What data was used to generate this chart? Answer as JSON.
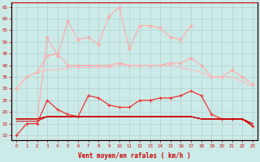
{
  "x": [
    0,
    1,
    2,
    3,
    4,
    5,
    6,
    7,
    8,
    9,
    10,
    11,
    12,
    13,
    14,
    15,
    16,
    17,
    18,
    19,
    20,
    21,
    22,
    23
  ],
  "y_rafales_spiky": [
    null,
    null,
    16,
    52,
    44,
    59,
    51,
    52,
    49,
    61,
    65,
    47,
    57,
    57,
    56,
    52,
    51,
    57,
    null,
    null,
    null,
    null,
    null,
    null
  ],
  "y_smooth_upper": [
    30,
    35,
    37,
    44,
    45,
    40,
    40,
    40,
    40,
    40,
    41,
    40,
    40,
    40,
    40,
    41,
    41,
    43,
    40,
    35,
    35,
    38,
    35,
    32
  ],
  "y_smooth_mid": [
    30,
    35,
    37,
    38,
    38,
    39,
    39,
    39,
    39,
    39,
    40,
    40,
    40,
    40,
    40,
    40,
    39,
    38,
    37,
    35,
    35,
    35,
    33,
    31
  ],
  "y_dark_spiky": [
    10,
    15,
    15,
    25,
    21,
    19,
    18,
    27,
    26,
    23,
    22,
    22,
    25,
    25,
    26,
    26,
    27,
    29,
    27,
    19,
    17,
    17,
    17,
    14
  ],
  "y_dark_flat1": [
    16,
    16,
    16,
    18,
    18,
    18,
    18,
    18,
    18,
    18,
    18,
    18,
    18,
    18,
    18,
    18,
    18,
    18,
    17,
    17,
    17,
    17,
    17,
    14
  ],
  "y_dark_flat2": [
    17,
    17,
    17,
    18,
    18,
    18,
    18,
    18,
    18,
    18,
    18,
    18,
    18,
    18,
    18,
    18,
    18,
    18,
    17,
    17,
    17,
    17,
    17,
    15
  ],
  "y_dark_flat3": [
    17,
    17,
    17,
    18,
    18,
    18,
    18,
    18,
    18,
    18,
    18,
    18,
    18,
    18,
    18,
    18,
    18,
    18,
    17,
    17,
    17,
    17,
    17,
    15
  ],
  "y_dark_flat4": [
    17,
    17,
    17,
    18,
    18,
    18,
    18,
    18,
    18,
    18,
    18,
    18,
    18,
    18,
    18,
    18,
    18,
    18,
    17,
    17,
    17,
    17,
    17,
    14
  ],
  "ylim": [
    8,
    67
  ],
  "yticks": [
    10,
    15,
    20,
    25,
    30,
    35,
    40,
    45,
    50,
    55,
    60,
    65
  ],
  "xlabel": "Vent moyen/en rafales ( km/h )",
  "bg_color": "#cceae8",
  "grid_color": "#aacccc",
  "color_light": "#ffaaaa",
  "color_medium": "#ee3333",
  "color_dark": "#cc0000",
  "color_axis": "#cc0000"
}
